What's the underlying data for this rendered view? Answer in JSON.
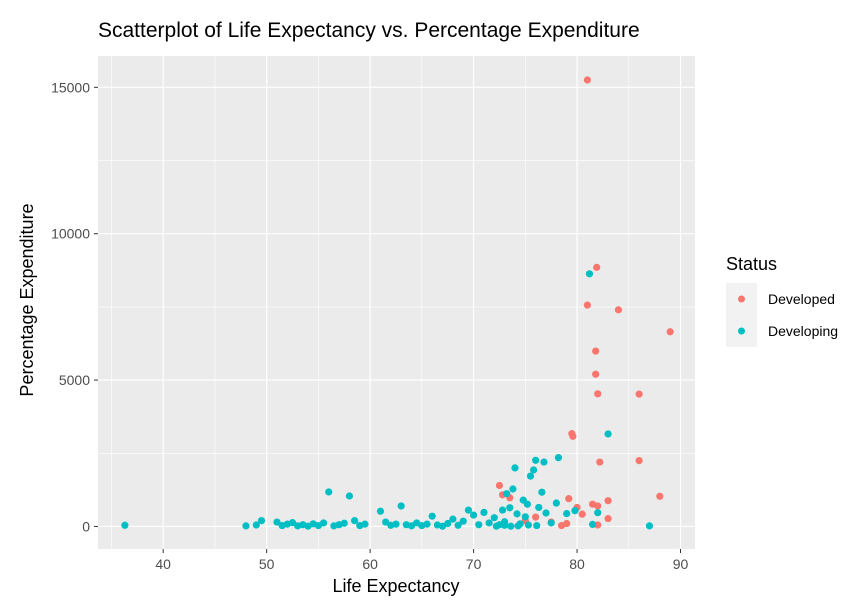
{
  "chart_data": {
    "type": "scatter",
    "title": "Scatterplot of Life Expectancy vs. Percentage Expenditure",
    "xlabel": "Life Expectancy",
    "ylabel": "Percentage Expenditure",
    "xlim": [
      33.7,
      91.4
    ],
    "ylim": [
      -770,
      16070
    ],
    "xticks": [
      40,
      50,
      60,
      70,
      80,
      90
    ],
    "yticks": [
      0,
      5000,
      10000,
      15000
    ],
    "grid": true,
    "legend": {
      "title": "Status",
      "placement": "right",
      "entries": [
        {
          "label": "Developed",
          "color": "#F8766D"
        },
        {
          "label": "Developing",
          "color": "#00BFC4"
        }
      ]
    },
    "series": [
      {
        "name": "Developed",
        "color": "#F8766D",
        "points": [
          [
            81.0,
            15250
          ],
          [
            81.9,
            8850
          ],
          [
            81.0,
            7560
          ],
          [
            84.0,
            7400
          ],
          [
            89.0,
            6650
          ],
          [
            81.8,
            5990
          ],
          [
            81.8,
            5200
          ],
          [
            82.0,
            4530
          ],
          [
            86.0,
            4520
          ],
          [
            79.5,
            3170
          ],
          [
            79.6,
            3080
          ],
          [
            86.0,
            2250
          ],
          [
            82.2,
            2200
          ],
          [
            72.5,
            1400
          ],
          [
            72.8,
            1080
          ],
          [
            73.5,
            980
          ],
          [
            79.2,
            950
          ],
          [
            88.0,
            1030
          ],
          [
            83.0,
            880
          ],
          [
            81.5,
            760
          ],
          [
            82.0,
            700
          ],
          [
            80.0,
            650
          ],
          [
            76.0,
            320
          ],
          [
            83.0,
            270
          ],
          [
            77.5,
            150
          ],
          [
            79.0,
            100
          ],
          [
            82.0,
            50
          ],
          [
            75.0,
            200
          ],
          [
            78.5,
            30
          ],
          [
            80.5,
            420
          ]
        ]
      },
      {
        "name": "Developing",
        "color": "#00BFC4",
        "points": [
          [
            36.3,
            40
          ],
          [
            48.0,
            20
          ],
          [
            49.0,
            50
          ],
          [
            49.5,
            200
          ],
          [
            51.0,
            150
          ],
          [
            51.5,
            30
          ],
          [
            52.0,
            80
          ],
          [
            52.5,
            130
          ],
          [
            53.0,
            20
          ],
          [
            53.5,
            60
          ],
          [
            54.0,
            10
          ],
          [
            54.5,
            90
          ],
          [
            55.0,
            30
          ],
          [
            55.5,
            120
          ],
          [
            56.0,
            1180
          ],
          [
            56.5,
            20
          ],
          [
            57.0,
            60
          ],
          [
            57.5,
            110
          ],
          [
            58.0,
            1040
          ],
          [
            58.5,
            200
          ],
          [
            59.0,
            30
          ],
          [
            59.5,
            80
          ],
          [
            61.0,
            520
          ],
          [
            61.5,
            150
          ],
          [
            62.0,
            40
          ],
          [
            62.5,
            80
          ],
          [
            63.0,
            700
          ],
          [
            63.5,
            60
          ],
          [
            64.0,
            20
          ],
          [
            64.5,
            120
          ],
          [
            65.0,
            30
          ],
          [
            65.5,
            80
          ],
          [
            66.0,
            350
          ],
          [
            66.5,
            50
          ],
          [
            67.0,
            10
          ],
          [
            67.5,
            100
          ],
          [
            68.0,
            250
          ],
          [
            68.5,
            40
          ],
          [
            69.0,
            180
          ],
          [
            69.5,
            560
          ],
          [
            70.0,
            390
          ],
          [
            70.5,
            60
          ],
          [
            71.0,
            480
          ],
          [
            71.5,
            120
          ],
          [
            72.0,
            300
          ],
          [
            72.5,
            60
          ],
          [
            72.8,
            560
          ],
          [
            73.0,
            160
          ],
          [
            73.2,
            1120
          ],
          [
            73.5,
            640
          ],
          [
            73.8,
            1280
          ],
          [
            74.0,
            2000
          ],
          [
            74.2,
            430
          ],
          [
            74.5,
            90
          ],
          [
            74.8,
            900
          ],
          [
            75.0,
            330
          ],
          [
            75.2,
            760
          ],
          [
            75.5,
            1720
          ],
          [
            75.8,
            1930
          ],
          [
            76.0,
            2260
          ],
          [
            76.3,
            650
          ],
          [
            76.6,
            1170
          ],
          [
            76.8,
            2200
          ],
          [
            77.0,
            460
          ],
          [
            77.5,
            120
          ],
          [
            78.0,
            800
          ],
          [
            78.2,
            2350
          ],
          [
            79.0,
            440
          ],
          [
            79.8,
            540
          ],
          [
            81.2,
            8630
          ],
          [
            81.5,
            70
          ],
          [
            82.0,
            470
          ],
          [
            83.0,
            3160
          ],
          [
            87.0,
            20
          ],
          [
            73.0,
            40
          ],
          [
            73.6,
            10
          ],
          [
            74.3,
            20
          ],
          [
            75.3,
            50
          ],
          [
            76.1,
            30
          ],
          [
            72.2,
            10
          ]
        ]
      }
    ]
  }
}
